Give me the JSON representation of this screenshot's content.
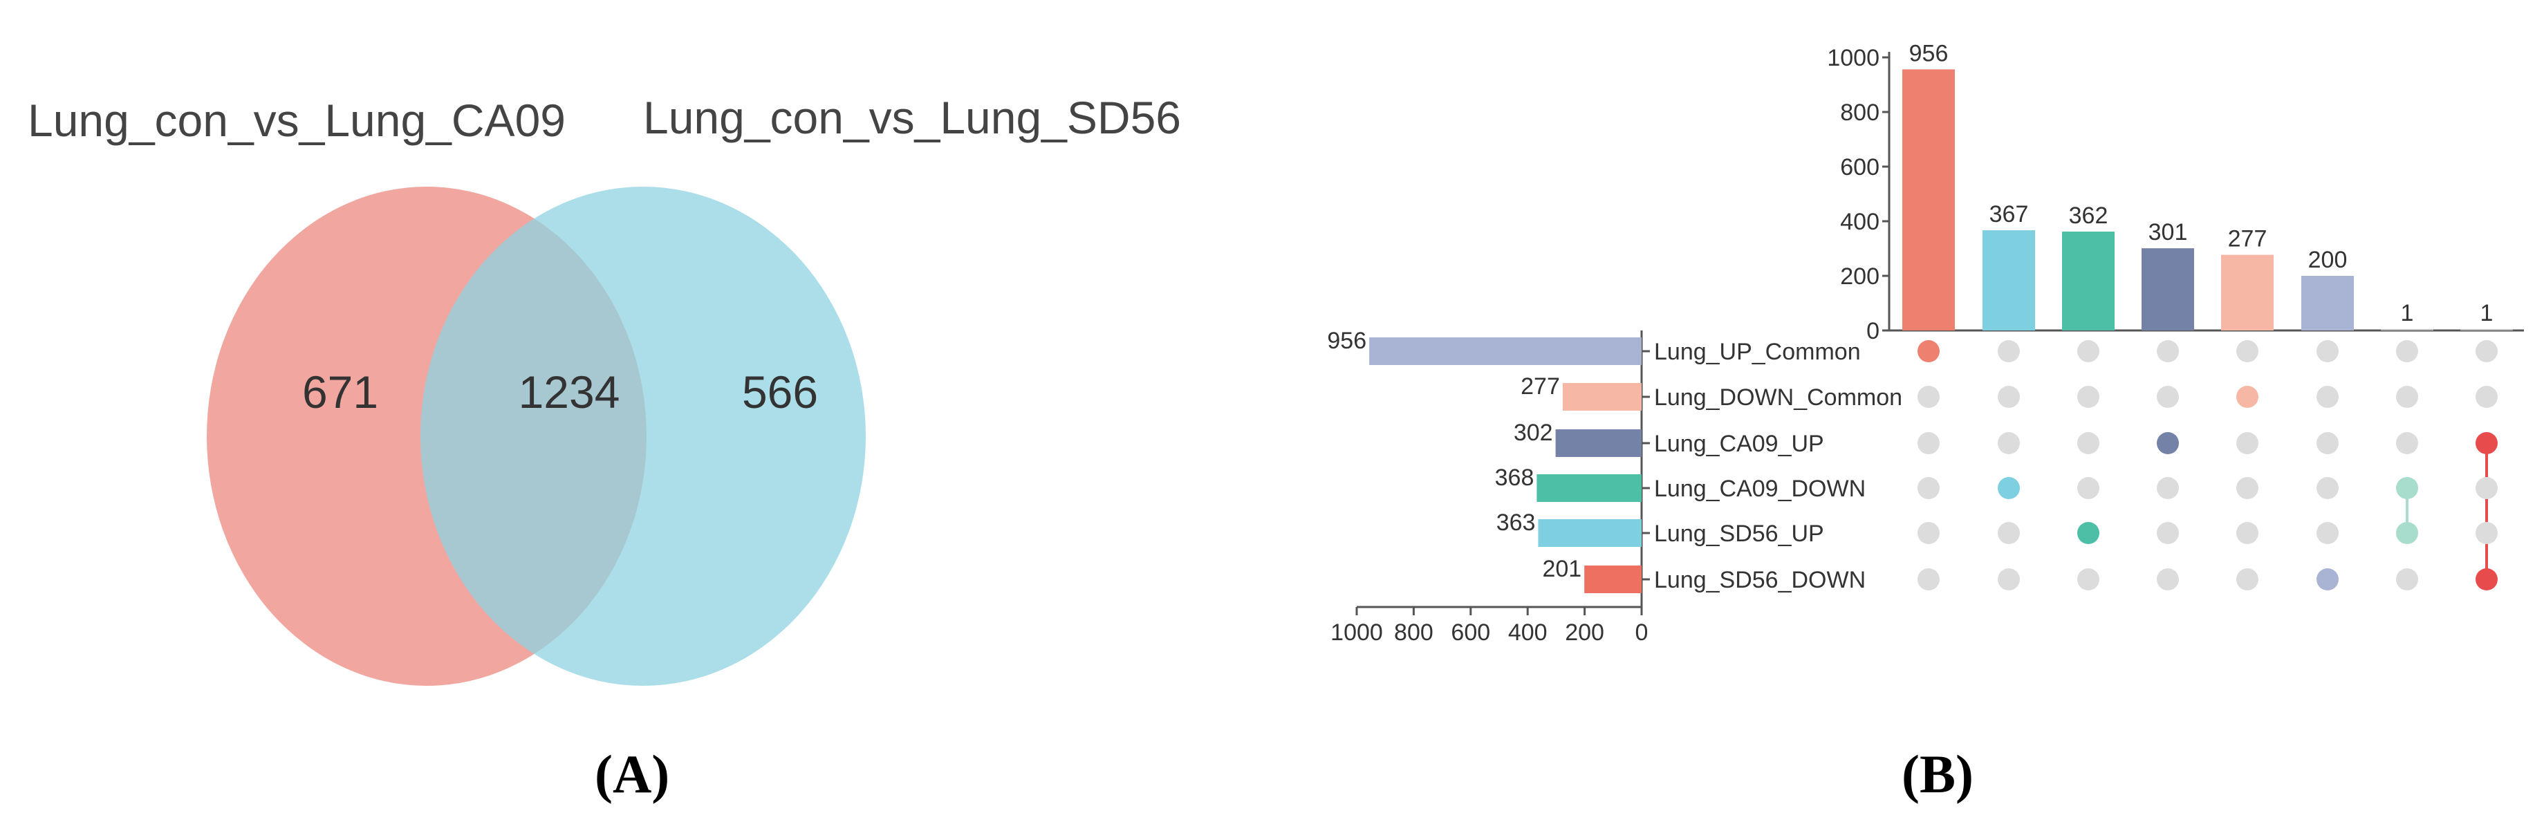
{
  "panels": {
    "a_label": "(A)",
    "b_label": "(B)"
  },
  "chart_data": [
    {
      "type": "venn",
      "sets": [
        {
          "name": "Lung_con_vs_Lung_CA09",
          "color": "#ec8a80"
        },
        {
          "name": "Lung_con_vs_Lung_SD56",
          "color": "#8fd3e2"
        }
      ],
      "regions": {
        "only_a": "671",
        "both": "1234",
        "only_b": "566"
      }
    },
    {
      "type": "upset",
      "intersection_bars": {
        "values": [
          956,
          367,
          362,
          301,
          277,
          200,
          1,
          1
        ],
        "labels": [
          "956",
          "367",
          "362",
          "301",
          "277",
          "200",
          "1",
          "1"
        ],
        "colors": [
          "#ee8070",
          "#7ecfe0",
          "#4dbfa6",
          "#7482a8",
          "#f6b8a4",
          "#a9b3d3",
          "#bfbfbf",
          "#bfbfbf"
        ],
        "ylim": [
          0,
          1000
        ],
        "ticks": [
          "0",
          "200",
          "400",
          "600",
          "800",
          "1000"
        ]
      },
      "sets": [
        {
          "name": "Lung_UP_Common",
          "size": 956,
          "label": "956",
          "color": "#a9b3d3"
        },
        {
          "name": "Lung_DOWN_Common",
          "size": 277,
          "label": "277",
          "color": "#f6b8a4"
        },
        {
          "name": "Lung_CA09_UP",
          "size": 302,
          "label": "302",
          "color": "#7482a8"
        },
        {
          "name": "Lung_CA09_DOWN",
          "size": 368,
          "label": "368",
          "color": "#4dbfa6"
        },
        {
          "name": "Lung_SD56_UP",
          "size": 363,
          "label": "363",
          "color": "#7ecfe0"
        },
        {
          "name": "Lung_SD56_DOWN",
          "size": 201,
          "label": "201",
          "color": "#ee7060"
        }
      ],
      "set_size_ticks": [
        "1000",
        "800",
        "600",
        "400",
        "200",
        "0"
      ],
      "set_size_xlim": [
        0,
        1000
      ],
      "matrix": [
        {
          "members": [
            0
          ],
          "color": "#ee8070"
        },
        {
          "members": [
            3
          ],
          "color": "#7ecfe0"
        },
        {
          "members": [
            4
          ],
          "color": "#4dbfa6"
        },
        {
          "members": [
            2
          ],
          "color": "#7482a8"
        },
        {
          "members": [
            1
          ],
          "color": "#f6b8a4"
        },
        {
          "members": [
            5
          ],
          "color": "#a9b3d3"
        },
        {
          "members": [
            3,
            4
          ],
          "color": "#a8dccd"
        },
        {
          "members": [
            2,
            5
          ],
          "color": "#e84b4b"
        }
      ],
      "inactive_dot_color": "#dcdcdc"
    }
  ]
}
